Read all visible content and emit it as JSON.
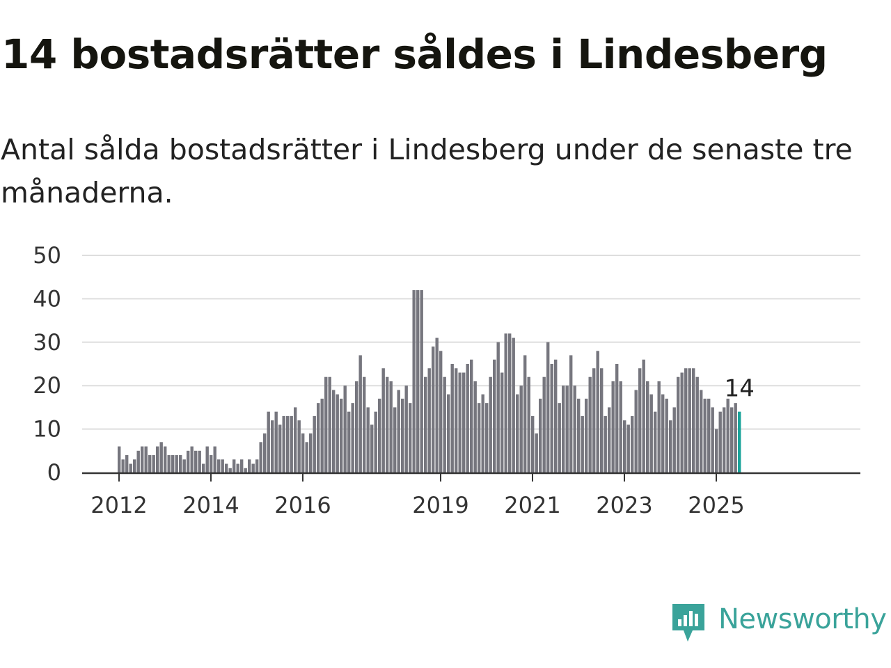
{
  "title": "14 bostadsrätter såldes i Lindesberg",
  "subtitle": "Antal sålda bostadsrätter i Lindesberg under de senaste tre månaderna.",
  "brand": {
    "name": "Newsworthy",
    "icon": "newsworthy-logo-icon",
    "color": "#3aa39a"
  },
  "colors": {
    "bar": "#76767e",
    "highlight": "#1aa39a",
    "grid": "#dedede",
    "axis": "#333333",
    "text": "#333333"
  },
  "chart_data": {
    "type": "bar",
    "title": "14 bostadsrätter såldes i Lindesberg",
    "subtitle": "Antal sålda bostadsrätter i Lindesberg under de senaste tre månaderna.",
    "xlabel": "",
    "ylabel": "",
    "ylim": [
      0,
      50
    ],
    "yticks": [
      0,
      10,
      20,
      30,
      40,
      50
    ],
    "xticks": [
      "2012",
      "2014",
      "2016",
      "2019",
      "2021",
      "2023",
      "2025"
    ],
    "grid": true,
    "frequency": "monthly, starting 2012-01",
    "values": [
      6,
      3,
      4,
      2,
      3,
      5,
      6,
      6,
      4,
      4,
      6,
      7,
      6,
      4,
      4,
      4,
      4,
      3,
      5,
      6,
      5,
      5,
      2,
      6,
      4,
      6,
      3,
      3,
      2,
      1,
      3,
      2,
      3,
      1,
      3,
      2,
      3,
      7,
      9,
      14,
      12,
      14,
      11,
      13,
      13,
      13,
      15,
      12,
      9,
      7,
      9,
      13,
      16,
      17,
      22,
      22,
      19,
      18,
      17,
      20,
      14,
      16,
      21,
      27,
      22,
      15,
      11,
      14,
      17,
      24,
      22,
      21,
      15,
      19,
      17,
      20,
      16,
      42,
      42,
      42,
      22,
      24,
      29,
      31,
      28,
      22,
      18,
      25,
      24,
      23,
      23,
      25,
      26,
      21,
      16,
      18,
      16,
      22,
      26,
      30,
      23,
      32,
      32,
      31,
      18,
      20,
      27,
      22,
      13,
      9,
      17,
      22,
      30,
      25,
      26,
      16,
      20,
      20,
      27,
      20,
      17,
      13,
      17,
      22,
      24,
      28,
      24,
      13,
      15,
      21,
      25,
      21,
      12,
      11,
      13,
      19,
      24,
      26,
      21,
      18,
      14,
      21,
      18,
      17,
      12,
      15,
      22,
      23,
      24,
      24,
      24,
      22,
      19,
      17,
      17,
      15,
      10,
      14,
      15,
      17,
      15,
      16,
      14
    ],
    "highlight_last": true,
    "annotation": {
      "label": "14",
      "value": 14,
      "target": "last"
    }
  }
}
